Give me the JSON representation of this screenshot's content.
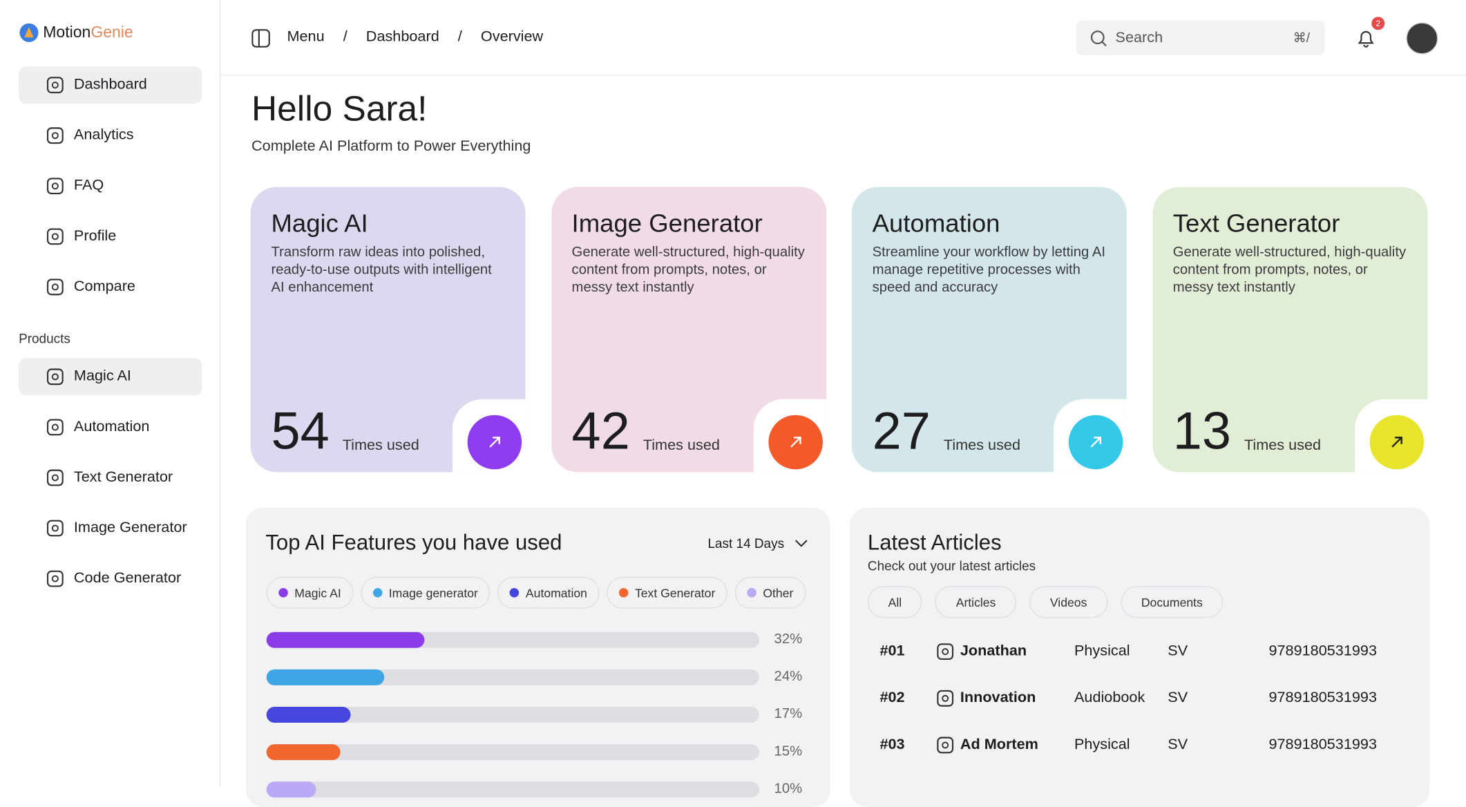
{
  "brand": {
    "name": "Motion",
    "accent": "Genie"
  },
  "sidebar": {
    "main": [
      "Dashboard",
      "Analytics",
      "FAQ",
      "Profile",
      "Compare"
    ],
    "section": "Products",
    "products": [
      "Magic AI",
      "Automation",
      "Text Generator",
      "Image Generator",
      "Code Generator"
    ]
  },
  "breadcrumb": [
    "Menu",
    "Dashboard",
    "Overview"
  ],
  "search": {
    "placeholder": "Search",
    "shortcut": "⌘/"
  },
  "notifications": 2,
  "greeting": {
    "title": "Hello Sara!",
    "subtitle": "Complete AI Platform to Power Everything"
  },
  "cards": [
    {
      "title": "Magic AI",
      "description": "Transform raw ideas into polished, ready-to-use outputs with intelligent AI enhancement",
      "count": 54,
      "unit": "Times used",
      "background": "#ddd8ef",
      "button": "#8f3cf0"
    },
    {
      "title": "Image Generator",
      "description": "Generate well-structured, high-quality content from prompts, notes, or messy text instantly",
      "count": 42,
      "unit": "Times used",
      "background": "#f1dbe6",
      "button": "#f4592a"
    },
    {
      "title": "Automation",
      "description": "Streamline your workflow by letting AI manage repetitive processes with speed and accuracy",
      "count": 27,
      "unit": "Times used",
      "background": "#d3e6e9",
      "button": "#34c8e8"
    },
    {
      "title": "Text Generator",
      "description": "Generate well-structured, high-quality content from prompts, notes, or messy text instantly",
      "count": 13,
      "unit": "Times used",
      "background": "#e1eed5",
      "button": "#e8e42c"
    }
  ],
  "features": {
    "title": "Top AI Features you have used",
    "range": "Last 14 Days",
    "legend": [
      {
        "name": "Magic AI",
        "color": "#8b3ce8"
      },
      {
        "name": "Image generator",
        "color": "#3fa6e6"
      },
      {
        "name": "Automation",
        "color": "#4646de"
      },
      {
        "name": "Text Generator",
        "color": "#f0662e"
      },
      {
        "name": "Other",
        "color": "#bba9f5"
      }
    ],
    "bars": [
      {
        "value": 32,
        "label": "32%",
        "color": "#8b3ce8"
      },
      {
        "value": 24,
        "label": "24%",
        "color": "#3fa6e6"
      },
      {
        "value": 17,
        "label": "17%",
        "color": "#4646de"
      },
      {
        "value": 15,
        "label": "15%",
        "color": "#f0662e"
      },
      {
        "value": 10,
        "label": "10%",
        "color": "#bba9f5"
      }
    ]
  },
  "articles": {
    "title": "Latest Articles",
    "subtitle": "Check out your latest articles",
    "filters": [
      "All",
      "Articles",
      "Videos",
      "Documents"
    ],
    "rows": [
      {
        "id": "#01",
        "title": "Jonathan",
        "type": "Physical",
        "code": "SV",
        "isbn": "9789180531993"
      },
      {
        "id": "#02",
        "title": "Innovation",
        "type": "Audiobook",
        "code": "SV",
        "isbn": "9789180531993"
      },
      {
        "id": "#03",
        "title": "Ad Mortem",
        "type": "Physical",
        "code": "SV",
        "isbn": "9789180531993"
      }
    ]
  }
}
